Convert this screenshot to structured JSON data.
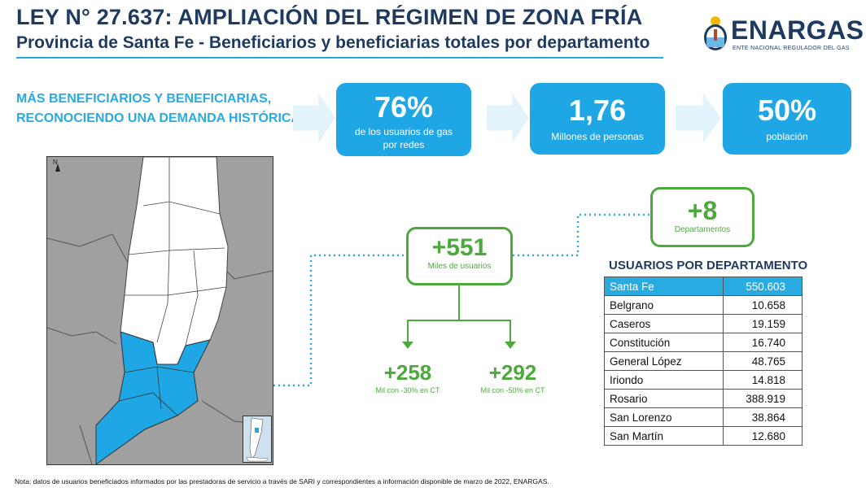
{
  "header": {
    "title": "LEY N° 27.637: AMPLIACIÓN DEL RÉGIMEN DE ZONA FRÍA",
    "subtitle": "Provincia de Santa Fe - Beneficiarios y beneficiarias totales por departamento"
  },
  "logo": {
    "name": "ENARGAS",
    "tagline": "ENTE NACIONAL REGULADOR DEL GAS",
    "icon": "coat-of-arms-icon"
  },
  "headline": {
    "line1": "MÁS BENEFICIARIOS Y BENEFICIARIAS,",
    "line2": "RECONOCIENDO UNA DEMANDA HISTÓRICA"
  },
  "stats": [
    {
      "value": "76%",
      "label": "de los usuarios de gas por redes"
    },
    {
      "value": "1,76",
      "label": "Millones de personas"
    },
    {
      "value": "50%",
      "label": "población"
    }
  ],
  "users_tree": {
    "total_value": "+551",
    "total_label": "Miles de usuarios",
    "left_value": "+258",
    "left_label": "Mil con -30% en CT",
    "right_value": "+292",
    "right_label": "Mil con -50% en CT"
  },
  "departments_box": {
    "value": "+8",
    "label": "Departamentos"
  },
  "table": {
    "title": "USUARIOS POR DEPARTAMENTO",
    "rows": [
      {
        "name": "Santa Fe",
        "value": "550.603",
        "highlight": true
      },
      {
        "name": "Belgrano",
        "value": "10.658"
      },
      {
        "name": "Caseros",
        "value": "19.159"
      },
      {
        "name": "Constitución",
        "value": "16.740"
      },
      {
        "name": "General López",
        "value": "48.765"
      },
      {
        "name": "Iriondo",
        "value": "14.818"
      },
      {
        "name": "Rosario",
        "value": "388.919"
      },
      {
        "name": "San Lorenzo",
        "value": "38.864"
      },
      {
        "name": "San Martín",
        "value": "12.680"
      }
    ]
  },
  "map": {
    "north_label": "N",
    "highlight_color": "#1ea7e4",
    "background_color": "#a0a0a0"
  },
  "footnote": "Nota: datos de usuarios beneficiados informados por las prestadoras de servicio a través de SARI y correspondientes a información disponible de marzo de 2022, ENARGAS.",
  "colors": {
    "accent_blue": "#1ea7e4",
    "accent_green": "#4caa3c",
    "navy": "#1f3a5f"
  }
}
